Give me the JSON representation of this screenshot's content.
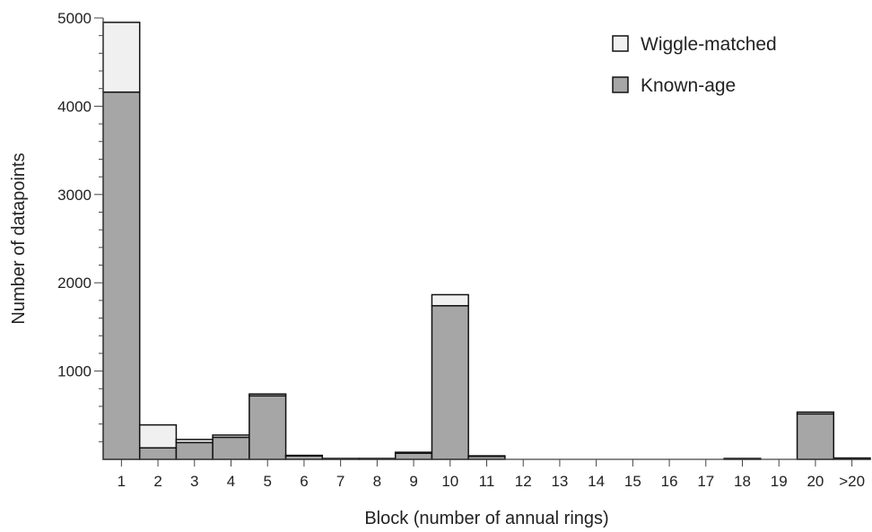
{
  "chart_data": {
    "type": "bar",
    "stacked": true,
    "categories": [
      "1",
      "2",
      "3",
      "4",
      "5",
      "6",
      "7",
      "8",
      "9",
      "10",
      "11",
      "12",
      "13",
      "14",
      "15",
      "16",
      "17",
      "18",
      "19",
      "20",
      ">20"
    ],
    "series": [
      {
        "name": "Known-age",
        "color": "#a6a6a6",
        "values": [
          4160,
          130,
          190,
          250,
          720,
          40,
          10,
          10,
          70,
          1740,
          35,
          0,
          0,
          0,
          0,
          0,
          0,
          10,
          0,
          515,
          15
        ]
      },
      {
        "name": "Wiggle-matched",
        "color": "#f0f0f0",
        "values": [
          790,
          260,
          35,
          25,
          20,
          5,
          0,
          0,
          10,
          125,
          5,
          0,
          0,
          0,
          0,
          0,
          0,
          0,
          0,
          20,
          0
        ]
      }
    ],
    "xlabel": "Block (number of annual rings)",
    "ylabel": "Number of datapoints",
    "ylim": [
      0,
      5000
    ],
    "yticks": [
      1000,
      2000,
      3000,
      4000,
      5000
    ],
    "y_minor_step": 200,
    "legend_placement": "top-right",
    "grid": false
  }
}
